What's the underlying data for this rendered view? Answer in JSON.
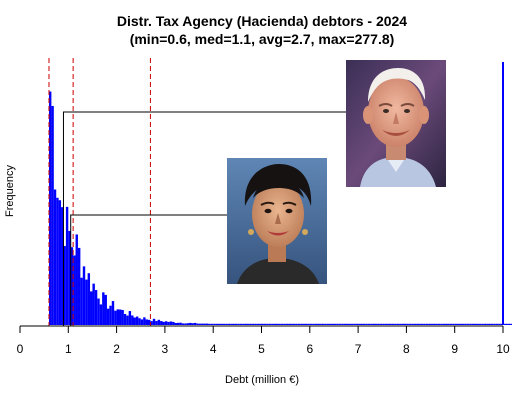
{
  "chart_data": {
    "type": "histogram",
    "title": "Distr. Tax Agency (Hacienda) debtors - 2024",
    "subtitle": "(min=0.6, med=1.1, avg=2.7, max=277.8)",
    "xlabel": "Debt (million €)",
    "ylabel": "Frequency",
    "xlim": [
      0,
      10
    ],
    "x_ticks": [
      "0",
      "1",
      "2",
      "3",
      "4",
      "5",
      "6",
      "7",
      "8",
      "9",
      "10"
    ],
    "grid": false,
    "bar_color": "#0000ff",
    "reference_lines": [
      {
        "stat": "min",
        "x": 0.6,
        "color": "#cc0000",
        "style": "dashed"
      },
      {
        "stat": "median",
        "x": 1.1,
        "color": "#cc0000",
        "style": "dashed"
      },
      {
        "stat": "average",
        "x": 2.7,
        "color": "#cc0000",
        "style": "dashed"
      }
    ],
    "overflow_bar": {
      "x": 10,
      "note": "values above 10 (max=277.8) clipped at axis end"
    },
    "annotations": [
      {
        "target_x": 0.9,
        "image": "photo-man-older-smiling"
      },
      {
        "target_x": 1.05,
        "image": "photo-woman-dark-hair"
      }
    ],
    "histogram": {
      "bin_width": 0.05,
      "counts": [
        0,
        0,
        0,
        0,
        0,
        0,
        0,
        0,
        0,
        0,
        0,
        0,
        1.0,
        0.9,
        0.75,
        0.64,
        0.55,
        0.5,
        0.45,
        0.41,
        0.38,
        0.35,
        0.34,
        0.33,
        0.3,
        0.27,
        0.25,
        0.23,
        0.2,
        0.18,
        0.17,
        0.15,
        0.14,
        0.12,
        0.11,
        0.1,
        0.09,
        0.085,
        0.08,
        0.075,
        0.07,
        0.064,
        0.058,
        0.054,
        0.05,
        0.046,
        0.042,
        0.038,
        0.035,
        0.032,
        0.03,
        0.028,
        0.026,
        0.024,
        0.022,
        0.021,
        0.02,
        0.018,
        0.017,
        0.016,
        0.015,
        0.014,
        0.013,
        0.012,
        0.011,
        0.011,
        0.01,
        0.009,
        0.009,
        0.008,
        0.008,
        0.007,
        0.007,
        0.007,
        0.006,
        0.006,
        0.006,
        0.005,
        0.005,
        0.005,
        0.005,
        0.005,
        0.004,
        0.004,
        0.004,
        0.004,
        0.004,
        0.003,
        0.003,
        0.003,
        0.003,
        0.003,
        0.003,
        0.003,
        0.002,
        0.002,
        0.002,
        0.002,
        0.002,
        0.002,
        0.002,
        0.002,
        0.002,
        0.002,
        0.002,
        0.002,
        0.002,
        0.002,
        0.002,
        0.002,
        0.002,
        0.002,
        0.002,
        0.002,
        0.002,
        0.002,
        0.002,
        0.002,
        0.002,
        0.002,
        0.002,
        0.002,
        0.002,
        0.002,
        0.002,
        0.002,
        0.002,
        0.002,
        0.002,
        0.002,
        0.002,
        0.002,
        0.002,
        0.002,
        0.002,
        0.002,
        0.002,
        0.002,
        0.002,
        0.002,
        0.002,
        0.002,
        0.002,
        0.002,
        0.002,
        0.002,
        0.002,
        0.002,
        0.002,
        0.002,
        0.002,
        0.002,
        0.002,
        0.002,
        0.002,
        0.002,
        0.002,
        0.002,
        0.002,
        0.002,
        0.002,
        0.002,
        0.002,
        0.002,
        0.002,
        0.002,
        0.002,
        0.002,
        0.002,
        0.002,
        0.002,
        0.002,
        0.002,
        0.002,
        0.002,
        0.002,
        0.002,
        0.002,
        0.002,
        0.002,
        0.002,
        0.002,
        0.002,
        0.002,
        0.002,
        0.002,
        0.002,
        0.002,
        0.002,
        0.002,
        0.002,
        0.002,
        0.002,
        0.002,
        0.002,
        0.002,
        0.002,
        0.002,
        0.002,
        0.002,
        0.002,
        0.002,
        0.002,
        0.002,
        0.002,
        0.002,
        0.002,
        0.002,
        0.002,
        0.002,
        0.002,
        0.002,
        0.002,
        0.002,
        0.002,
        0.002,
        0.002,
        0.002,
        0.002,
        0.002,
        0.002,
        0.002,
        0.002,
        0.002,
        0.002,
        0.002,
        0.002,
        0.002,
        0.002,
        0.002,
        1.12
      ]
    }
  }
}
